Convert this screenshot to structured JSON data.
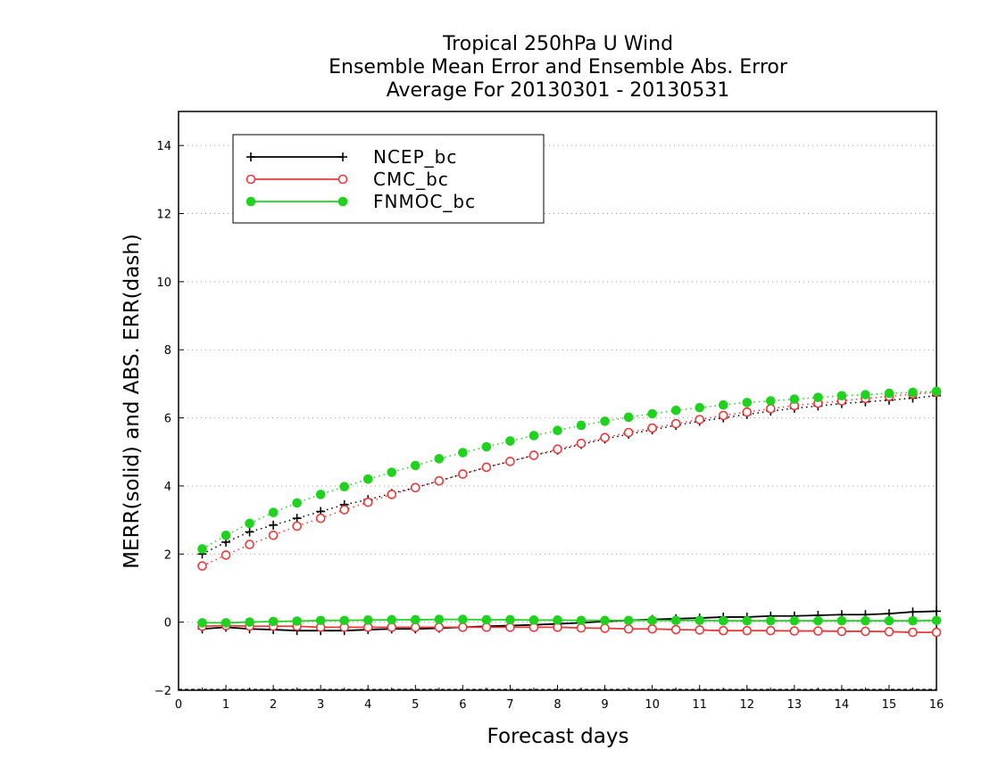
{
  "chart_data": {
    "type": "line",
    "title_lines": [
      "Tropical 250hPa U Wind",
      "Ensemble Mean Error and Ensemble Abs. Error",
      "Average For 20130301 - 20130531"
    ],
    "xlabel": "Forecast days",
    "ylabel": "MERR(solid) and ABS. ERR(dash)",
    "xlim": [
      0,
      16
    ],
    "ylim": [
      -2,
      15
    ],
    "xticks": [
      0,
      1,
      2,
      3,
      4,
      5,
      6,
      7,
      8,
      9,
      10,
      11,
      12,
      13,
      14,
      15,
      16
    ],
    "yticks": [
      -2,
      0,
      2,
      4,
      6,
      8,
      10,
      12,
      14
    ],
    "grid": "horizontal dotted",
    "legend_position": "top-left",
    "x": [
      0.5,
      1,
      1.5,
      2,
      2.5,
      3,
      3.5,
      4,
      4.5,
      5,
      5.5,
      6,
      6.5,
      7,
      7.5,
      8,
      8.5,
      9,
      9.5,
      10,
      10.5,
      11,
      11.5,
      12,
      12.5,
      13,
      13.5,
      14,
      14.5,
      15,
      15.5,
      16
    ],
    "series": [
      {
        "name": "NCEP_bc",
        "color": "#000000",
        "marker": "plus",
        "merr": [
          -0.2,
          -0.15,
          -0.2,
          -0.22,
          -0.25,
          -0.25,
          -0.25,
          -0.22,
          -0.2,
          -0.2,
          -0.18,
          -0.15,
          -0.12,
          -0.1,
          -0.08,
          -0.05,
          -0.02,
          0.02,
          0.05,
          0.08,
          0.1,
          0.12,
          0.15,
          0.15,
          0.18,
          0.18,
          0.2,
          0.22,
          0.22,
          0.25,
          0.3,
          0.32
        ],
        "abs_err": [
          2.0,
          2.35,
          2.65,
          2.85,
          3.05,
          3.25,
          3.45,
          3.6,
          3.78,
          3.95,
          4.15,
          4.35,
          4.55,
          4.72,
          4.9,
          5.05,
          5.22,
          5.38,
          5.52,
          5.65,
          5.78,
          5.9,
          6.0,
          6.1,
          6.2,
          6.28,
          6.35,
          6.42,
          6.47,
          6.52,
          6.58,
          6.65
        ]
      },
      {
        "name": "CMC_bc",
        "color": "#e83a3a",
        "marker": "open-circle",
        "merr": [
          -0.12,
          -0.1,
          -0.12,
          -0.12,
          -0.12,
          -0.15,
          -0.15,
          -0.15,
          -0.15,
          -0.15,
          -0.15,
          -0.15,
          -0.15,
          -0.15,
          -0.15,
          -0.15,
          -0.17,
          -0.18,
          -0.2,
          -0.2,
          -0.22,
          -0.23,
          -0.25,
          -0.25,
          -0.25,
          -0.26,
          -0.26,
          -0.27,
          -0.27,
          -0.28,
          -0.3,
          -0.3
        ],
        "abs_err": [
          1.65,
          1.97,
          2.28,
          2.55,
          2.82,
          3.05,
          3.3,
          3.52,
          3.75,
          3.95,
          4.15,
          4.35,
          4.55,
          4.72,
          4.9,
          5.08,
          5.25,
          5.42,
          5.57,
          5.7,
          5.83,
          5.95,
          6.07,
          6.17,
          6.27,
          6.36,
          6.43,
          6.5,
          6.57,
          6.63,
          6.7,
          6.75
        ]
      },
      {
        "name": "FNMOC_bc",
        "color": "#1ed21e",
        "marker": "filled-circle",
        "merr": [
          -0.02,
          -0.02,
          0.0,
          0.02,
          0.03,
          0.05,
          0.05,
          0.06,
          0.07,
          0.07,
          0.08,
          0.08,
          0.07,
          0.07,
          0.06,
          0.06,
          0.05,
          0.05,
          0.05,
          0.05,
          0.05,
          0.05,
          0.04,
          0.04,
          0.04,
          0.04,
          0.04,
          0.04,
          0.04,
          0.04,
          0.04,
          0.05
        ],
        "abs_err": [
          2.15,
          2.55,
          2.9,
          3.22,
          3.5,
          3.75,
          3.98,
          4.2,
          4.4,
          4.6,
          4.8,
          4.98,
          5.15,
          5.32,
          5.48,
          5.63,
          5.78,
          5.9,
          6.02,
          6.12,
          6.22,
          6.3,
          6.38,
          6.45,
          6.5,
          6.55,
          6.6,
          6.65,
          6.68,
          6.72,
          6.75,
          6.78
        ]
      }
    ]
  }
}
